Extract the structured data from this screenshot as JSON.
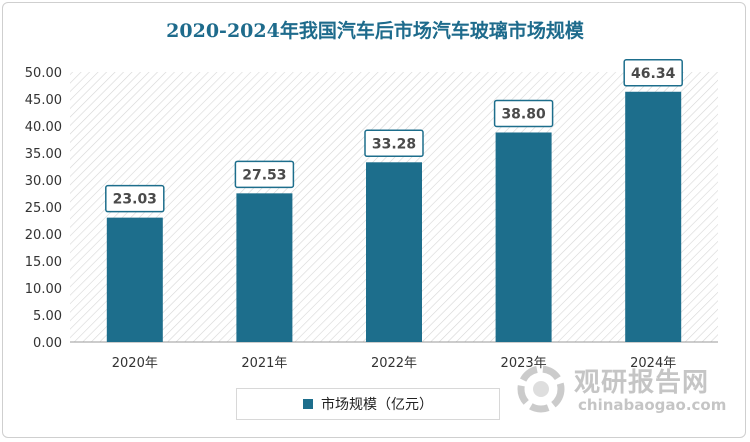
{
  "chart_data": {
    "type": "bar",
    "title": "2020-2024年我国汽车后市场汽车玻璃市场规模",
    "categories": [
      "2020年",
      "2021年",
      "2022年",
      "2023年",
      "2024年"
    ],
    "series": [
      {
        "name": "市场规模（亿元）",
        "values": [
          23.03,
          27.53,
          33.28,
          38.8,
          46.34
        ]
      }
    ],
    "data_labels": [
      "23.03",
      "27.53",
      "33.28",
      "38.80",
      "46.34"
    ],
    "yticks": [
      "0.00",
      "5.00",
      "10.00",
      "15.00",
      "20.00",
      "25.00",
      "30.00",
      "35.00",
      "40.00",
      "45.00",
      "50.00"
    ],
    "ylim": [
      0,
      50
    ],
    "grid": false,
    "legend": "bottom",
    "bar_color": "#1d6e8c"
  },
  "watermark": {
    "name": "观研报告网",
    "site": "chinabaogao.com"
  }
}
